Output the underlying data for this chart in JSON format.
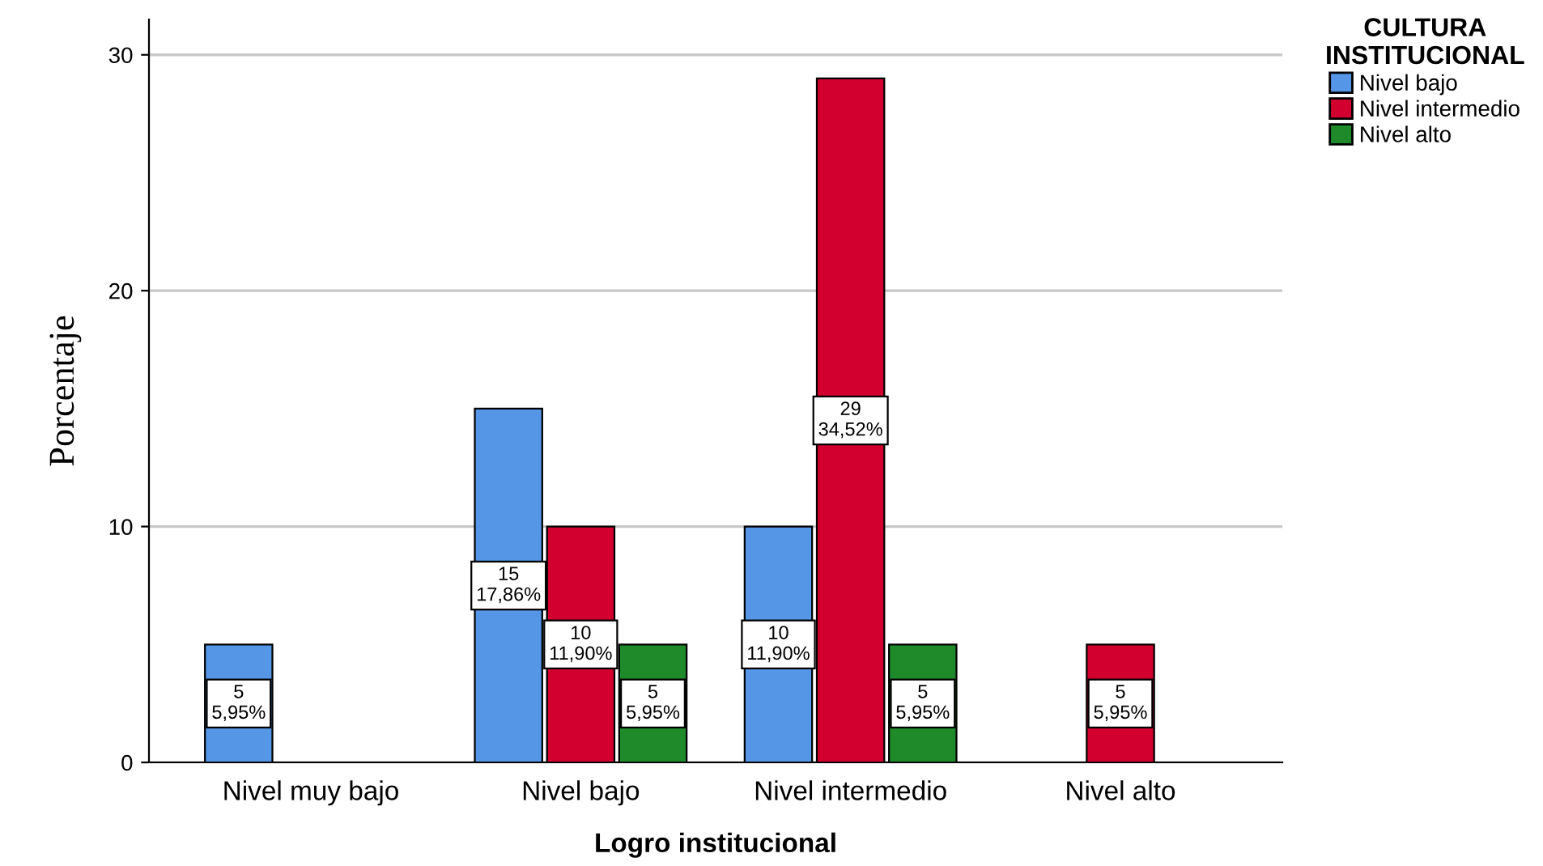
{
  "chart_data": {
    "type": "bar",
    "xlabel": "Logro institucional",
    "ylabel": "Porcentaje",
    "legend_title": "CULTURA\nINSTITUCIONAL",
    "categories": [
      "Nivel muy bajo",
      "Nivel bajo",
      "Nivel intermedio",
      "Nivel alto"
    ],
    "series": [
      {
        "name": "Nivel bajo",
        "color": "#5596e6",
        "values": [
          5,
          15,
          10,
          null
        ],
        "value_labels": [
          "5\n5,95%",
          "15\n17,86%",
          "10\n11,90%",
          null
        ]
      },
      {
        "name": "Nivel intermedio",
        "color": "#d2002f",
        "values": [
          null,
          10,
          29,
          5
        ],
        "value_labels": [
          null,
          "10\n11,90%",
          "29\n34,52%",
          "5\n5,95%"
        ]
      },
      {
        "name": "Nivel alto",
        "color": "#1f8a2a",
        "values": [
          null,
          5,
          5,
          null
        ],
        "value_labels": [
          null,
          "5\n5,95%",
          "5\n5,95%",
          null
        ]
      }
    ],
    "ylim": [
      0,
      31.5
    ],
    "yticks": [
      0,
      10,
      20,
      30
    ],
    "grid": "y",
    "legend": "top right"
  }
}
